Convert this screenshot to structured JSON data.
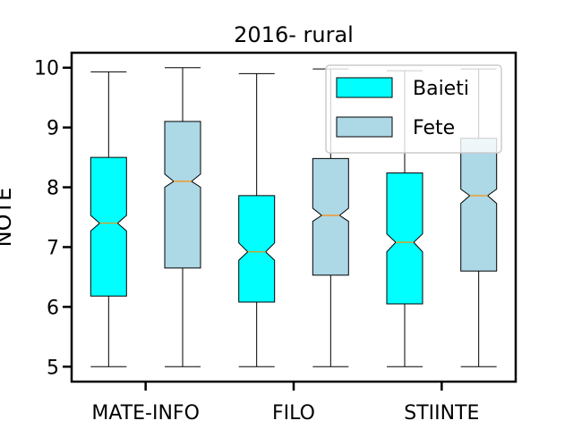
{
  "chart_data": {
    "type": "box",
    "title": "2016- rural",
    "xlabel": "",
    "ylabel": "NOTE",
    "categories": [
      "MATE-INFO",
      "FILO",
      "STIINTE"
    ],
    "ylim": [
      4.75,
      10.25
    ],
    "yticks": [
      5,
      6,
      7,
      8,
      9,
      10
    ],
    "notched": true,
    "legend_position": "top-right",
    "series": [
      {
        "name": "Baieti",
        "color": "#00ffff",
        "boxes": [
          {
            "whisker_low": 5.0,
            "q1": 6.18,
            "median": 7.4,
            "q3": 8.5,
            "whisker_high": 9.93,
            "notch_low": 7.27,
            "notch_high": 7.53
          },
          {
            "whisker_low": 5.0,
            "q1": 6.08,
            "median": 6.92,
            "q3": 7.86,
            "whisker_high": 9.9,
            "notch_low": 6.78,
            "notch_high": 7.07
          },
          {
            "whisker_low": 5.0,
            "q1": 6.05,
            "median": 7.08,
            "q3": 8.24,
            "whisker_high": 9.95,
            "notch_low": 6.92,
            "notch_high": 7.22
          }
        ]
      },
      {
        "name": "Fete",
        "color": "#add8e6",
        "boxes": [
          {
            "whisker_low": 5.0,
            "q1": 6.65,
            "median": 8.1,
            "q3": 9.1,
            "whisker_high": 10.0,
            "notch_low": 8.0,
            "notch_high": 8.22
          },
          {
            "whisker_low": 5.0,
            "q1": 6.53,
            "median": 7.53,
            "q3": 8.48,
            "whisker_high": 9.98,
            "notch_low": 7.43,
            "notch_high": 7.65
          },
          {
            "whisker_low": 5.0,
            "q1": 6.6,
            "median": 7.86,
            "q3": 8.82,
            "whisker_high": 9.98,
            "notch_low": 7.73,
            "notch_high": 7.97
          }
        ]
      }
    ],
    "median_color": "#ff8c00"
  }
}
